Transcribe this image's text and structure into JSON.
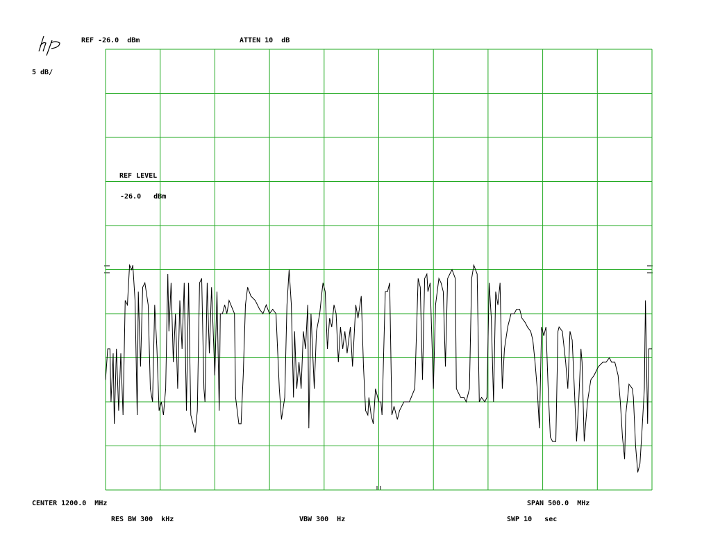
{
  "chart_data": {
    "type": "line",
    "ref_readout": "REF -26.0  dBm",
    "atten_readout": "ATTEN 10  dB",
    "scale_readout": "5 dB/",
    "ref_level_label": "REF LEVEL",
    "ref_level_value": "-26.0   dBm",
    "center_readout": "CENTER 1200.0  MHz",
    "span_readout": "SPAN 500.0  MHz",
    "rbw_readout": "RES BW 300  kHz",
    "vbw_readout": "VBW 300  Hz",
    "sweep_readout": "SWP 10   sec",
    "color": "#000000",
    "grid": true,
    "grid_color": "#22aa22",
    "xlim": [
      950,
      1450
    ],
    "ylim": [
      -76,
      -26
    ],
    "xticks": [
      950,
      1000,
      1050,
      1100,
      1150,
      1200,
      1250,
      1300,
      1350,
      1400,
      1450
    ],
    "yticks": [
      -76,
      -71,
      -66,
      -61,
      -56,
      -51,
      -46,
      -41,
      -36,
      -31,
      -26
    ],
    "x": [
      950,
      952,
      954,
      955,
      957,
      958,
      960,
      962,
      964,
      966,
      968,
      970,
      972,
      974,
      975,
      977,
      979,
      980,
      982,
      984,
      986,
      989,
      991,
      993,
      995,
      997,
      999,
      1001,
      1003,
      1005,
      1007,
      1008,
      1010,
      1012,
      1014,
      1016,
      1018,
      1020,
      1022,
      1024,
      1026,
      1028,
      1030,
      1032,
      1034,
      1036,
      1038,
      1040,
      1041,
      1043,
      1045,
      1047,
      1050,
      1052,
      1054,
      1055,
      1057,
      1059,
      1061,
      1063,
      1068,
      1069,
      1072,
      1074,
      1076,
      1078,
      1080,
      1083,
      1087,
      1091,
      1094,
      1097,
      1100,
      1103,
      1106,
      1109,
      1111,
      1114,
      1116,
      1118,
      1120,
      1122,
      1123,
      1125,
      1127,
      1129,
      1131,
      1133,
      1135,
      1136,
      1138,
      1141,
      1143,
      1146,
      1148,
      1149,
      1151,
      1153,
      1155,
      1157,
      1159,
      1161,
      1163,
      1165,
      1167,
      1169,
      1171,
      1174,
      1176,
      1179,
      1181,
      1184,
      1186,
      1188,
      1190,
      1191,
      1193,
      1195,
      1197,
      1200,
      1202,
      1203,
      1206,
      1208,
      1210,
      1212,
      1214,
      1217,
      1219,
      1223,
      1228,
      1233,
      1236,
      1238,
      1240,
      1242,
      1244,
      1245,
      1247,
      1250,
      1252,
      1255,
      1257,
      1259,
      1261,
      1263,
      1265,
      1267,
      1270,
      1271,
      1275,
      1278,
      1280,
      1283,
      1285,
      1287,
      1290,
      1292,
      1294,
      1297,
      1299,
      1301,
      1303,
      1305,
      1307,
      1309,
      1311,
      1313,
      1315,
      1318,
      1321,
      1324,
      1326,
      1329,
      1331,
      1334,
      1336,
      1339,
      1341,
      1343,
      1345,
      1347,
      1349,
      1351,
      1353,
      1355,
      1357,
      1359,
      1362,
      1364,
      1365,
      1368,
      1371,
      1373,
      1375,
      1377,
      1379,
      1381,
      1383,
      1385,
      1386,
      1388,
      1391,
      1394,
      1397,
      1401,
      1405,
      1408,
      1411,
      1413,
      1416,
      1419,
      1421,
      1423,
      1425,
      1426,
      1429,
      1432,
      1433,
      1435,
      1437,
      1439,
      1441,
      1443,
      1444,
      1446,
      1447,
      1449,
      1450
    ],
    "values": [
      -63.5,
      -60,
      -60,
      -66,
      -60.5,
      -68.5,
      -60,
      -67,
      -60.5,
      -67.5,
      -54.5,
      -55,
      -50.5,
      -51,
      -50.5,
      -54.5,
      -67.5,
      -53.5,
      -62,
      -53,
      -52.5,
      -55,
      -64.5,
      -66,
      -55,
      -60,
      -67,
      -66,
      -67.5,
      -64.5,
      -51.5,
      -58,
      -52.5,
      -61.5,
      -56,
      -64.5,
      -54.5,
      -60,
      -52.5,
      -67,
      -52.5,
      -67.5,
      -68.5,
      -69.5,
      -67,
      -52.5,
      -52,
      -64.5,
      -66,
      -52.5,
      -60.5,
      -53,
      -63,
      -53.5,
      -67,
      -56,
      -56,
      -55,
      -56,
      -54.5,
      -56,
      -65.5,
      -68.5,
      -68.5,
      -63,
      -55,
      -53,
      -54,
      -54.5,
      -55.5,
      -56,
      -55,
      -56,
      -55.5,
      -56,
      -64.5,
      -68,
      -65.5,
      -55,
      -51,
      -55,
      -65.5,
      -58,
      -64.5,
      -61.5,
      -64.5,
      -58,
      -60,
      -55,
      -69,
      -56,
      -64.5,
      -58,
      -56,
      -53.5,
      -52.5,
      -53.5,
      -60,
      -56.5,
      -57.5,
      -55,
      -56,
      -61.5,
      -57.5,
      -60,
      -58,
      -60.5,
      -57.5,
      -62,
      -55,
      -56.5,
      -54,
      -62,
      -67,
      -67.5,
      -65.5,
      -67.5,
      -68.5,
      -64.5,
      -66,
      -66,
      -67.5,
      -53.5,
      -53.5,
      -52.5,
      -67.5,
      -66.5,
      -68,
      -67,
      -66,
      -66,
      -64.5,
      -52,
      -53,
      -63.5,
      -52,
      -51.5,
      -53.5,
      -52.5,
      -64.5,
      -55,
      -52,
      -52.5,
      -53.5,
      -62,
      -52,
      -51.5,
      -51,
      -52,
      -64.5,
      -65.5,
      -65.5,
      -66,
      -64.5,
      -52,
      -50.5,
      -51.5,
      -66,
      -65.5,
      -66,
      -65.5,
      -52.5,
      -56.5,
      -66,
      -53.5,
      -55,
      -52.5,
      -64.5,
      -60,
      -57.5,
      -56,
      -56,
      -55.5,
      -55.5,
      -56.5,
      -57,
      -57.5,
      -58,
      -59,
      -61.5,
      -64.5,
      -69,
      -57.5,
      -58.5,
      -57.5,
      -64.5,
      -70,
      -70.5,
      -70.5,
      -58,
      -57.5,
      -58,
      -61.5,
      -64.5,
      -58,
      -59,
      -64.5,
      -70.5,
      -66,
      -60,
      -61.5,
      -70.5,
      -66,
      -63.5,
      -63,
      -62,
      -61.5,
      -61.5,
      -61,
      -61.5,
      -61.5,
      -63,
      -66,
      -70,
      -72.5,
      -67.5,
      -64,
      -64.5,
      -65.5,
      -71,
      -74,
      -73,
      -69,
      -64.5,
      -54.5,
      -68.5,
      -60,
      -60,
      -60
    ]
  }
}
